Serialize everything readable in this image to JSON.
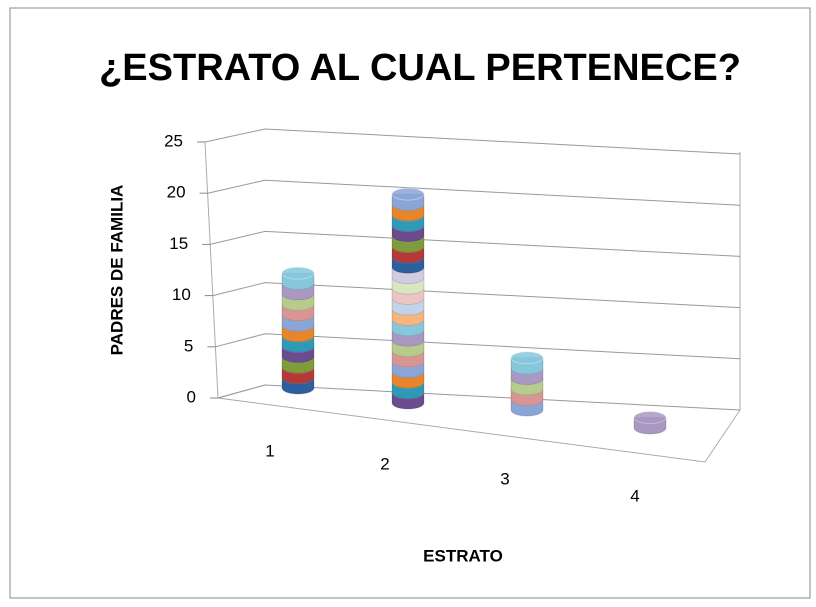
{
  "chart_data": {
    "type": "bar3d-cylinder",
    "title": "¿ESTRATO AL CUAL PERTENECE?",
    "x_label": "ESTRATO",
    "y_label": "PADRES DE FAMILIA",
    "categories": [
      "1",
      "2",
      "3",
      "4"
    ],
    "values": [
      11,
      20,
      5,
      1
    ],
    "ylim": [
      0,
      25
    ],
    "yticks": [
      0,
      5,
      10,
      15,
      20,
      25
    ],
    "grid": true,
    "disk_colors": [
      "#2e5f9e",
      "#b53a37",
      "#7f9c3a",
      "#6a4c8f",
      "#2f9ab8",
      "#e8852a",
      "#8aa6d6",
      "#d89594",
      "#b7cc8a",
      "#a898c2",
      "#87c7dc",
      "#f6b57e",
      "#c4d3ec",
      "#ecc4c3",
      "#d9e6bf",
      "#d3cbe0"
    ]
  }
}
